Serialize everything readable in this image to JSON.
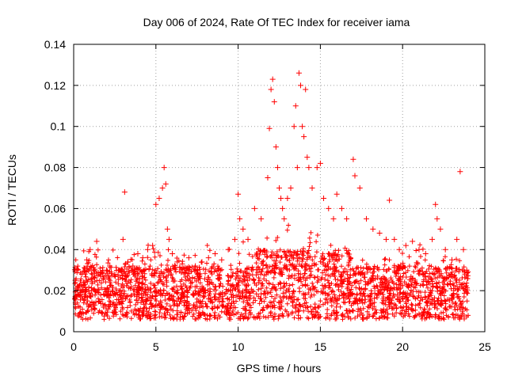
{
  "chart_data": {
    "type": "scatter",
    "title": "Day 006 of 2024, Rate Of TEC Index for receiver iama",
    "xlabel": "GPS time / hours",
    "ylabel": "ROTI / TECUs",
    "xlim": [
      0,
      25
    ],
    "ylim": [
      0,
      0.14
    ],
    "xticks": [
      0,
      5,
      10,
      15,
      20,
      25
    ],
    "yticks": [
      0,
      0.02,
      0.04,
      0.06,
      0.08,
      0.1,
      0.12,
      0.14
    ],
    "ytick_labels": [
      "0",
      "0.02",
      "0.04",
      "0.06",
      "0.08",
      "0.1",
      "0.12",
      "0.14"
    ],
    "grid": true,
    "marker": "plus",
    "color": "#ff0000",
    "series": [
      {
        "x": [
          0.1,
          0.2,
          0.3,
          0.4,
          0.5,
          0.6,
          0.8,
          1.0,
          1.2,
          1.4,
          1.6,
          1.8,
          2.0,
          2.2,
          2.5,
          2.8,
          3.0,
          3.1,
          3.3,
          3.6,
          3.9,
          4.2,
          4.5,
          4.8,
          5.0,
          5.2,
          5.4,
          5.5,
          5.6,
          5.7,
          5.8,
          6.0,
          6.3,
          6.6,
          7.0,
          7.4,
          7.8,
          8.2,
          8.6,
          9.0,
          9.4,
          9.8,
          10.0,
          10.1,
          10.3,
          10.6,
          11.0,
          11.4,
          11.8,
          11.9,
          12.0,
          12.1,
          12.2,
          12.3,
          12.4,
          12.5,
          12.6,
          12.7,
          12.8,
          13.0,
          13.2,
          13.4,
          13.5,
          13.6,
          13.7,
          13.8,
          13.9,
          14.0,
          14.1,
          14.2,
          14.3,
          14.5,
          14.8,
          15.0,
          15.2,
          15.5,
          15.8,
          16.0,
          16.3,
          16.6,
          17.0,
          17.1,
          17.4,
          17.8,
          18.2,
          18.6,
          19.0,
          19.2,
          19.5,
          19.8,
          20.2,
          20.6,
          21.0,
          21.4,
          21.8,
          22.0,
          22.1,
          22.3,
          22.6,
          23.0,
          23.3,
          23.5,
          23.7,
          23.9
        ],
        "y": [
          0.025,
          0.03,
          0.022,
          0.018,
          0.028,
          0.024,
          0.035,
          0.04,
          0.03,
          0.044,
          0.028,
          0.026,
          0.03,
          0.032,
          0.028,
          0.03,
          0.045,
          0.068,
          0.034,
          0.032,
          0.038,
          0.036,
          0.04,
          0.042,
          0.062,
          0.065,
          0.07,
          0.08,
          0.072,
          0.05,
          0.045,
          0.038,
          0.034,
          0.033,
          0.036,
          0.032,
          0.034,
          0.036,
          0.038,
          0.035,
          0.04,
          0.045,
          0.067,
          0.055,
          0.05,
          0.045,
          0.06,
          0.055,
          0.075,
          0.099,
          0.118,
          0.123,
          0.112,
          0.09,
          0.08,
          0.07,
          0.065,
          0.06,
          0.055,
          0.065,
          0.07,
          0.1,
          0.11,
          0.08,
          0.126,
          0.12,
          0.1,
          0.095,
          0.118,
          0.085,
          0.08,
          0.07,
          0.08,
          0.082,
          0.065,
          0.06,
          0.055,
          0.067,
          0.06,
          0.055,
          0.084,
          0.076,
          0.07,
          0.055,
          0.05,
          0.048,
          0.045,
          0.064,
          0.045,
          0.04,
          0.042,
          0.044,
          0.04,
          0.038,
          0.045,
          0.062,
          0.055,
          0.05,
          0.04,
          0.035,
          0.045,
          0.078,
          0.04,
          0.03
        ]
      }
    ]
  }
}
